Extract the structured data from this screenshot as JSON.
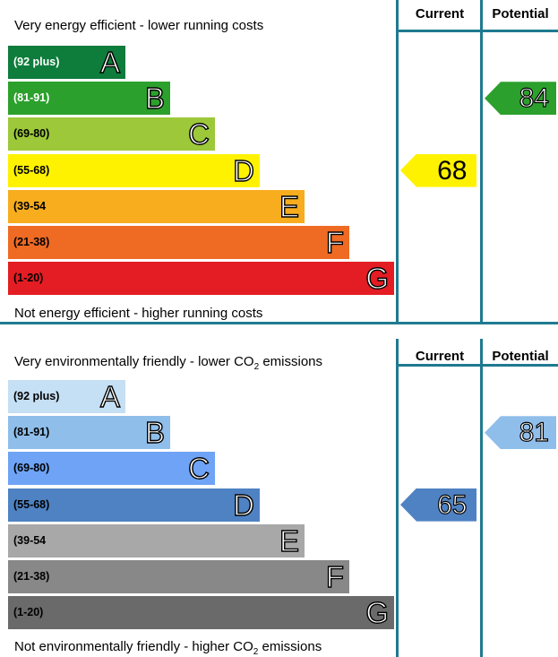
{
  "chart_data": [
    {
      "type": "bar",
      "headers": {
        "current": "Current",
        "potential": "Potential"
      },
      "top_text": "Very energy efficient - lower running costs",
      "bottom_text": "Not energy efficient - higher running costs",
      "bands": [
        {
          "range": "(92 plus)",
          "letter": "A",
          "color": "#0e7c3b",
          "text_color": "#ffffff"
        },
        {
          "range": "(81-91)",
          "letter": "B",
          "color": "#2ca02c",
          "text_color": "#ffffff"
        },
        {
          "range": "(69-80)",
          "letter": "C",
          "color": "#9cc83a",
          "text_color": "#000000"
        },
        {
          "range": "(55-68)",
          "letter": "D",
          "color": "#fff200",
          "text_color": "#000000"
        },
        {
          "range": "(39-54",
          "letter": "E",
          "color": "#f7ad1e",
          "text_color": "#000000"
        },
        {
          "range": "(21-38)",
          "letter": "F",
          "color": "#ef6a23",
          "text_color": "#000000"
        },
        {
          "range": "(1-20)",
          "letter": "G",
          "color": "#e31d23",
          "text_color": "#000000"
        }
      ],
      "current": {
        "value": 68,
        "band": "D",
        "color": "#fff200",
        "text_color": "#000000"
      },
      "potential": {
        "value": 84,
        "band": "B",
        "color": "#2ca02c",
        "text_color": "#ffffff"
      }
    },
    {
      "type": "bar",
      "headers": {
        "current": "Current",
        "potential": "Potential"
      },
      "top_text": "Very environmentally friendly - lower CO",
      "top_text_sub": "2",
      "top_text_after": " emissions",
      "bottom_text": "Not environmentally friendly - higher CO",
      "bottom_text_sub": "2",
      "bottom_text_after": " emissions",
      "bands": [
        {
          "range": "(92 plus)",
          "letter": "A",
          "color": "#c5dff4",
          "text_color": "#000000"
        },
        {
          "range": "(81-91)",
          "letter": "B",
          "color": "#8fbeea",
          "text_color": "#000000"
        },
        {
          "range": "(69-80)",
          "letter": "C",
          "color": "#6ea3f5",
          "text_color": "#000000"
        },
        {
          "range": "(55-68)",
          "letter": "D",
          "color": "#4f82c3",
          "text_color": "#000000"
        },
        {
          "range": "(39-54",
          "letter": "E",
          "color": "#a8a8a8",
          "text_color": "#000000"
        },
        {
          "range": "(21-38)",
          "letter": "F",
          "color": "#888888",
          "text_color": "#000000"
        },
        {
          "range": "(1-20)",
          "letter": "G",
          "color": "#6a6a6a",
          "text_color": "#000000"
        }
      ],
      "current": {
        "value": 65,
        "band": "D",
        "color": "#4f82c3",
        "text_color": "#ffffff"
      },
      "potential": {
        "value": 81,
        "band": "B",
        "color": "#8fbeea",
        "text_color": "#ffffff"
      }
    }
  ]
}
